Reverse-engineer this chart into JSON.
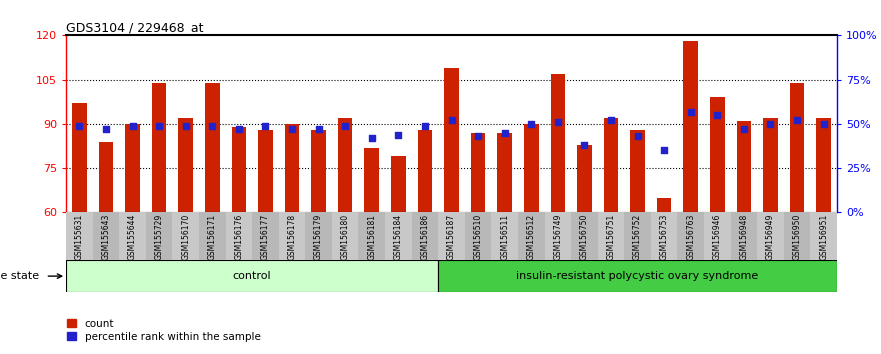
{
  "title": "GDS3104 / 229468_at",
  "samples": [
    "GSM155631",
    "GSM155643",
    "GSM155644",
    "GSM155729",
    "GSM156170",
    "GSM156171",
    "GSM156176",
    "GSM156177",
    "GSM156178",
    "GSM156179",
    "GSM156180",
    "GSM156181",
    "GSM156184",
    "GSM156186",
    "GSM156187",
    "GSM156510",
    "GSM156511",
    "GSM156512",
    "GSM156749",
    "GSM156750",
    "GSM156751",
    "GSM156752",
    "GSM156753",
    "GSM156763",
    "GSM156946",
    "GSM156948",
    "GSM156949",
    "GSM156950",
    "GSM156951"
  ],
  "counts": [
    97,
    84,
    90,
    104,
    92,
    104,
    89,
    88,
    90,
    88,
    92,
    82,
    79,
    88,
    109,
    87,
    87,
    90,
    107,
    83,
    92,
    88,
    65,
    118,
    99,
    91,
    92,
    104,
    92
  ],
  "percentiles": [
    49,
    47,
    49,
    49,
    49,
    49,
    47,
    49,
    47,
    47,
    49,
    42,
    44,
    49,
    52,
    43,
    45,
    50,
    51,
    38,
    52,
    43,
    35,
    57,
    55,
    47,
    50,
    52,
    50
  ],
  "control_count": 14,
  "disease_count": 15,
  "ylim_left": [
    60,
    120
  ],
  "ylim_right": [
    0,
    100
  ],
  "yticks_left": [
    60,
    75,
    90,
    105,
    120
  ],
  "yticks_right": [
    0,
    25,
    50,
    75,
    100
  ],
  "ytick_labels_right": [
    "0%",
    "25%",
    "50%",
    "75%",
    "100%"
  ],
  "bar_color": "#CC2200",
  "blue_color": "#2222CC",
  "control_bg": "#CCFFCC",
  "disease_bg": "#44CC44",
  "tick_bg_even": "#C8C8C8",
  "tick_bg_odd": "#B8B8B8",
  "label_control": "control",
  "label_disease": "insulin-resistant polycystic ovary syndrome",
  "disease_state_label": "disease state",
  "legend_count": "count",
  "legend_percentile": "percentile rank within the sample"
}
